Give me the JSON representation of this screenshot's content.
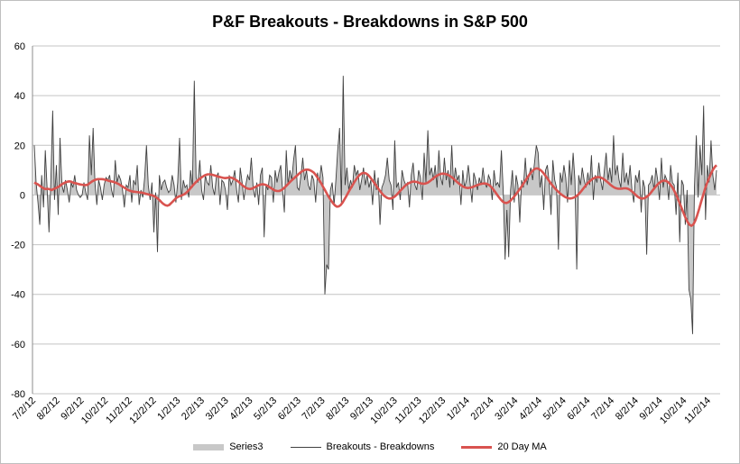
{
  "chart_data": {
    "type": "area",
    "title": "P&F Breakouts - Breakdowns in S&P 500",
    "xlabel": "",
    "ylabel": "",
    "ylim": [
      -80,
      60
    ],
    "yticks": [
      60,
      40,
      20,
      0,
      -20,
      -40,
      -60,
      -80
    ],
    "x_tick_labels": [
      "7/2/12",
      "8/2/12",
      "9/2/12",
      "10/2/12",
      "11/2/12",
      "12/2/12",
      "1/2/13",
      "2/2/13",
      "3/2/13",
      "4/2/13",
      "5/2/13",
      "6/2/13",
      "7/2/13",
      "8/2/13",
      "9/2/13",
      "10/2/13",
      "11/2/13",
      "12/2/13",
      "1/2/14",
      "2/2/14",
      "3/2/14",
      "4/2/14",
      "5/2/14",
      "6/2/14",
      "7/2/14",
      "8/2/14",
      "9/2/14",
      "10/2/14",
      "11/2/14"
    ],
    "grid": true,
    "series": [
      {
        "name": "Series3",
        "style": "area",
        "color": "#c8c8c8",
        "values": [
          20,
          5,
          -3,
          -12,
          8,
          -5,
          18,
          2,
          -15,
          5,
          34,
          -2,
          12,
          -8,
          23,
          4,
          1,
          6,
          2,
          -3,
          5,
          3,
          8,
          2,
          0,
          -1,
          0,
          5,
          1,
          -2,
          24,
          8,
          27,
          5,
          -4,
          6,
          3,
          -2,
          4,
          7,
          6,
          8,
          2,
          -1,
          14,
          5,
          8,
          6,
          2,
          -5,
          4,
          3,
          8,
          -3,
          6,
          4,
          12,
          -4,
          2,
          -1,
          7,
          20,
          4,
          -2,
          5,
          -15,
          1,
          -23,
          8,
          2,
          5,
          6,
          3,
          1,
          2,
          8,
          4,
          -3,
          5,
          23,
          -2,
          6,
          3,
          4,
          -1,
          10,
          3,
          46,
          7,
          5,
          14,
          2,
          -2,
          8,
          5,
          4,
          12,
          3,
          0,
          7,
          9,
          -4,
          6,
          5,
          2,
          -6,
          8,
          4,
          6,
          10,
          2,
          -3,
          11,
          5,
          -2,
          4,
          8,
          6,
          15,
          3,
          -1,
          5,
          -4,
          8,
          11,
          -17,
          4,
          2,
          8,
          7,
          -3,
          10,
          5,
          9,
          12,
          2,
          -7,
          18,
          4,
          10,
          6,
          14,
          20,
          3,
          2,
          8,
          15,
          6,
          10,
          4,
          2,
          8,
          6,
          -3,
          9,
          5,
          12,
          7,
          -40,
          -28,
          -30,
          2,
          5,
          -4,
          6,
          18,
          27,
          -3,
          48,
          4,
          11,
          2,
          6,
          3,
          12,
          8,
          10,
          2,
          6,
          11,
          4,
          8,
          3,
          6,
          -4,
          10,
          2,
          7,
          -12,
          3,
          5,
          8,
          15,
          6,
          4,
          -6,
          22,
          3,
          5,
          -2,
          10,
          6,
          4,
          5,
          -5,
          8,
          13,
          4,
          2,
          10,
          7,
          -2,
          17,
          5,
          26,
          8,
          11,
          6,
          12,
          3,
          18,
          7,
          4,
          15,
          6,
          10,
          3,
          20,
          4,
          11,
          6,
          8,
          -4,
          10,
          3,
          6,
          12,
          5,
          -3,
          9,
          6,
          2,
          7,
          4,
          11,
          5,
          3,
          8,
          6,
          -2,
          10,
          4,
          5,
          3,
          18,
          2,
          -26,
          -6,
          -25,
          2,
          10,
          -3,
          8,
          4,
          -11,
          6,
          3,
          15,
          4,
          8,
          11,
          6,
          13,
          20,
          17,
          3,
          8,
          -6,
          10,
          12,
          5,
          -8,
          14,
          6,
          3,
          -22,
          9,
          5,
          12,
          7,
          -3,
          14,
          4,
          17,
          6,
          -30,
          8,
          4,
          11,
          6,
          3,
          9,
          4,
          16,
          -2,
          8,
          5,
          13,
          6,
          2,
          10,
          17,
          6,
          11,
          5,
          24,
          8,
          12,
          6,
          3,
          17,
          5,
          9,
          4,
          12,
          2,
          -3,
          8,
          5,
          10,
          -7,
          6,
          3,
          -24,
          4,
          5,
          8,
          2,
          11,
          6,
          -2,
          15,
          3,
          8,
          6,
          -2,
          12,
          5,
          4,
          -8,
          9,
          -19,
          6,
          4,
          -12,
          2,
          -38,
          -42,
          -56,
          3,
          24,
          -1,
          20,
          8,
          36,
          -10,
          12,
          5,
          22,
          8,
          2,
          10
        ]
      },
      {
        "name": "Breakouts - Breakdowns",
        "style": "line",
        "color": "#404040"
      },
      {
        "name": "20 Day MA",
        "style": "line",
        "color": "#d9534f",
        "values": [
          5,
          4.6,
          4.2,
          3.6,
          3.1,
          2.6,
          2.4,
          2.5,
          2.3,
          2,
          2.4,
          2.7,
          3.1,
          3.5,
          4.2,
          4.6,
          5,
          5.3,
          5.5,
          5.4,
          5,
          4.8,
          4.6,
          4.4,
          4.2,
          4.1,
          4,
          4,
          4.3,
          4.9,
          5.5,
          5.9,
          6.2,
          6.4,
          6.4,
          6.4,
          6.3,
          6.1,
          5.9,
          5.6,
          5.5,
          5.3,
          5,
          4.7,
          4.3,
          3.8,
          3.3,
          2.8,
          2.3,
          1.9,
          1.6,
          1.4,
          1.3,
          1.2,
          1.1,
          1,
          0.9,
          0.7,
          0.5,
          0.3,
          0.1,
          -0.1,
          -0.4,
          -0.8,
          -1.4,
          -2.1,
          -2.9,
          -3.6,
          -4.1,
          -4.3,
          -4,
          -3.3,
          -2.5,
          -1.7,
          -1,
          -0.6,
          -0.3,
          0,
          0.4,
          1,
          1.8,
          2.7,
          3.6,
          4.5,
          5.3,
          6,
          6.6,
          7.2,
          7.7,
          8.1,
          8.3,
          8.3,
          8.2,
          8,
          7.8,
          7.5,
          7.3,
          7.1,
          6.9,
          6.8,
          6.9,
          7,
          7,
          6.8,
          6.4,
          5.9,
          5.3,
          4.6,
          3.9,
          3.3,
          2.8,
          2.5,
          2.4,
          2.6,
          3,
          3.4,
          3.8,
          4.1,
          4.3,
          4.3,
          4.1,
          3.7,
          3.2,
          2.7,
          2.2,
          1.8,
          1.6,
          1.6,
          1.9,
          2.4,
          3.1,
          3.9,
          4.7,
          5.5,
          6.2,
          6.9,
          7.6,
          8.3,
          9,
          9.6,
          10,
          10.2,
          10.2,
          10,
          9.6,
          9,
          8.1,
          7,
          5.8,
          4.5,
          3.1,
          1.7,
          0.3,
          -1,
          -2.2,
          -3.3,
          -4.2,
          -4.7,
          -4.6,
          -4,
          -3,
          -1.7,
          -0.3,
          1.1,
          2.5,
          3.8,
          5.1,
          6.3,
          7.4,
          8.2,
          8.7,
          8.9,
          8.7,
          8.2,
          7.4,
          6.4,
          5.3,
          4.2,
          3.1,
          2,
          1,
          0.1,
          -0.6,
          -1.1,
          -1.4,
          -1.4,
          -1.1,
          -0.6,
          0.1,
          0.9,
          1.8,
          2.6,
          3.4,
          4.1,
          4.6,
          5,
          5.3,
          5.4,
          5.3,
          5.1,
          4.8,
          4.6,
          4.5,
          4.6,
          4.9,
          5.4,
          6,
          6.7,
          7.3,
          7.8,
          8.2,
          8.5,
          8.6,
          8.5,
          8.3,
          8,
          7.5,
          6.9,
          6.2,
          5.5,
          4.8,
          4.2,
          3.6,
          3.2,
          2.9,
          2.8,
          2.9,
          3.1,
          3.4,
          3.7,
          4,
          4.3,
          4.5,
          4.6,
          4.6,
          4.4,
          4,
          3.3,
          2.4,
          1.4,
          0.3,
          -0.8,
          -1.8,
          -2.6,
          -3.1,
          -3.2,
          -2.9,
          -2.3,
          -1.5,
          -0.6,
          0.4,
          1.4,
          2.5,
          3.6,
          4.8,
          6,
          7.2,
          8.3,
          9.3,
          10.1,
          10.6,
          10.7,
          10.4,
          9.8,
          9,
          8,
          6.9,
          5.8,
          4.7,
          3.7,
          2.8,
          2,
          1.2,
          0.5,
          -0.1,
          -0.6,
          -1,
          -1.3,
          -1.4,
          -1.3,
          -1,
          -0.6,
          0,
          0.8,
          1.7,
          2.7,
          3.7,
          4.6,
          5.4,
          6.1,
          6.6,
          7,
          7.2,
          7.2,
          7,
          6.6,
          6.1,
          5.5,
          4.8,
          4.1,
          3.5,
          3,
          2.7,
          2.5,
          2.5,
          2.6,
          2.7,
          2.7,
          2.5,
          2.1,
          1.5,
          0.8,
          0.1,
          -0.6,
          -1.1,
          -1.4,
          -1.4,
          -1.1,
          -0.6,
          0.1,
          1,
          2,
          3,
          3.9,
          4.7,
          5.3,
          5.7,
          5.8,
          5.6,
          5.1,
          4.3,
          3.2,
          1.8,
          0.2,
          -1.6,
          -3.5,
          -5.5,
          -7.5,
          -9.3,
          -10.9,
          -12,
          -12.4,
          -11.8,
          -10.3,
          -8.1,
          -5.5,
          -2.8,
          -0.1,
          2.4,
          4.6,
          6.6,
          8.4,
          10,
          11.2,
          12
        ]
      }
    ]
  }
}
